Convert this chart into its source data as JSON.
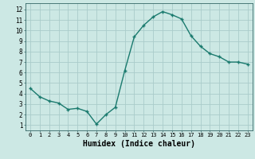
{
  "x": [
    0,
    1,
    2,
    3,
    4,
    5,
    6,
    7,
    8,
    9,
    10,
    11,
    12,
    13,
    14,
    15,
    16,
    17,
    18,
    19,
    20,
    21,
    22,
    23
  ],
  "y": [
    4.5,
    3.7,
    3.3,
    3.1,
    2.5,
    2.6,
    2.3,
    1.1,
    2.0,
    2.7,
    6.2,
    9.4,
    10.5,
    11.3,
    11.8,
    11.5,
    11.1,
    9.5,
    8.5,
    7.8,
    7.5,
    7.0,
    7.0,
    6.8
  ],
  "line_color": "#1a7a6e",
  "marker": "+",
  "markersize": 3,
  "linewidth": 1.0,
  "bg_color": "#cce8e4",
  "grid_color": "#aaccca",
  "xlabel": "Humidex (Indice chaleur)",
  "xlabel_fontsize": 7,
  "xtick_labels": [
    "0",
    "1",
    "2",
    "3",
    "4",
    "5",
    "6",
    "7",
    "8",
    "9",
    "10",
    "11",
    "12",
    "13",
    "14",
    "15",
    "16",
    "17",
    "18",
    "19",
    "20",
    "21",
    "22",
    "23"
  ],
  "ytick_labels": [
    "1",
    "2",
    "3",
    "4",
    "5",
    "6",
    "7",
    "8",
    "9",
    "10",
    "11",
    "12"
  ],
  "ylim": [
    0.5,
    12.6
  ],
  "xlim": [
    -0.5,
    23.5
  ],
  "title": ""
}
